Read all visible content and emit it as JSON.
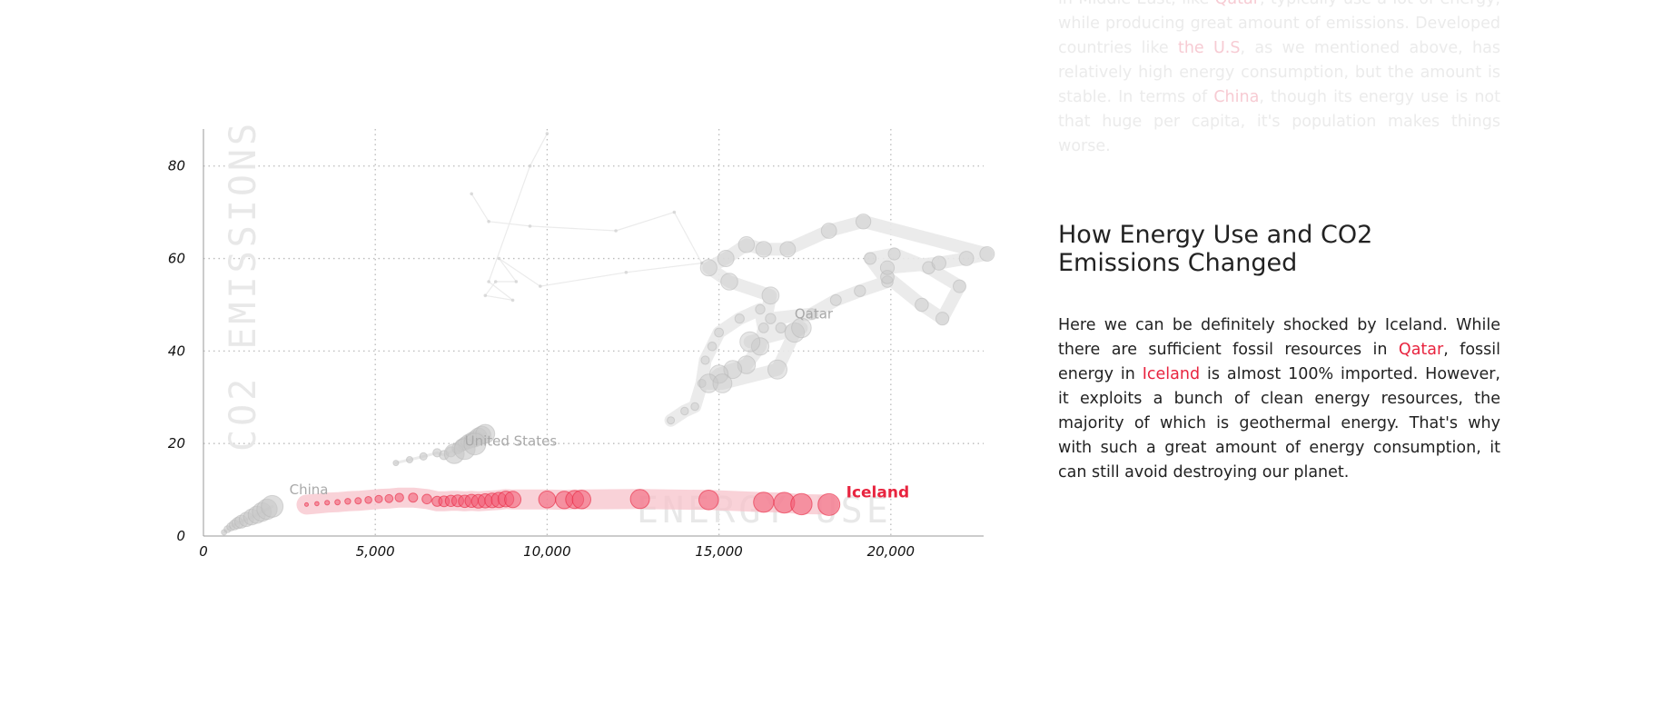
{
  "chart_data": {
    "type": "scatter",
    "xlabel": "ENERGY USE",
    "ylabel": "CO2 EMISSIONS",
    "xlim": [
      0,
      22700
    ],
    "ylim": [
      0,
      88
    ],
    "x_ticks": [
      0,
      5000,
      10000,
      15000,
      20000
    ],
    "x_tick_labels": [
      "0",
      "5,000",
      "10,000",
      "15,000",
      "20,000"
    ],
    "y_ticks": [
      0,
      20,
      40,
      60,
      80
    ],
    "y_tick_labels": [
      "0",
      "20",
      "40",
      "60",
      "80"
    ],
    "grid": "dotted",
    "series": [
      {
        "name": "China",
        "highlight": false,
        "label_pos": [
          2500,
          9
        ],
        "points": [
          [
            600,
            0.8
          ],
          [
            700,
            1.5
          ],
          [
            800,
            2.0
          ],
          [
            900,
            2.4
          ],
          [
            1000,
            2.8
          ],
          [
            1100,
            3.1
          ],
          [
            1250,
            3.6
          ],
          [
            1400,
            4.1
          ],
          [
            1550,
            4.6
          ],
          [
            1700,
            5.2
          ],
          [
            1850,
            5.8
          ],
          [
            2000,
            6.4
          ]
        ]
      },
      {
        "name": "United States",
        "highlight": false,
        "label_pos": [
          7600,
          19.5
        ],
        "points": [
          [
            5600,
            15.8
          ],
          [
            6000,
            16.5
          ],
          [
            6400,
            17.2
          ],
          [
            6800,
            18.0
          ],
          [
            7000,
            17.5
          ],
          [
            7200,
            18.2
          ],
          [
            7400,
            19.0
          ],
          [
            7500,
            19.6
          ],
          [
            7600,
            20.0
          ],
          [
            7700,
            20.4
          ],
          [
            7800,
            20.7
          ],
          [
            7900,
            21.0
          ],
          [
            8000,
            21.5
          ],
          [
            8100,
            21.8
          ],
          [
            8200,
            22.1
          ],
          [
            7300,
            17.8
          ],
          [
            7600,
            18.8
          ],
          [
            7900,
            19.9
          ]
        ]
      },
      {
        "name": "",
        "highlight": false,
        "label_pos": null,
        "points": [
          [
            7800,
            74
          ],
          [
            8300,
            68
          ],
          [
            9500,
            67
          ],
          [
            12000,
            66
          ],
          [
            13700,
            70
          ],
          [
            14500,
            59
          ],
          [
            12300,
            57
          ],
          [
            9800,
            54
          ],
          [
            8600,
            60
          ],
          [
            9100,
            55
          ],
          [
            8500,
            55
          ],
          [
            8200,
            52
          ],
          [
            9000,
            51
          ],
          [
            8300,
            55
          ],
          [
            9500,
            80
          ],
          [
            10000,
            87
          ]
        ]
      },
      {
        "name": "Qatar",
        "highlight": false,
        "label_pos": [
          17200,
          47
        ],
        "points": [
          [
            13600,
            25
          ],
          [
            14000,
            27
          ],
          [
            14300,
            28
          ],
          [
            14500,
            33
          ],
          [
            14600,
            38
          ],
          [
            14800,
            41
          ],
          [
            15000,
            44
          ],
          [
            15600,
            47
          ],
          [
            16200,
            49
          ],
          [
            16300,
            45
          ],
          [
            16800,
            45
          ],
          [
            16500,
            47
          ],
          [
            17700,
            48
          ],
          [
            18400,
            51
          ],
          [
            19100,
            53
          ],
          [
            19900,
            55
          ],
          [
            19400,
            60
          ],
          [
            20100,
            61
          ],
          [
            21100,
            58
          ],
          [
            22000,
            54
          ],
          [
            21500,
            47
          ],
          [
            20900,
            50
          ],
          [
            19900,
            56
          ],
          [
            19900,
            58
          ],
          [
            21400,
            59
          ],
          [
            22200,
            60
          ],
          [
            22800,
            61
          ],
          [
            19200,
            68
          ],
          [
            18200,
            66
          ],
          [
            17000,
            62
          ],
          [
            16300,
            62
          ],
          [
            15800,
            63
          ],
          [
            15200,
            60
          ],
          [
            14700,
            58
          ],
          [
            15300,
            55
          ],
          [
            16500,
            52
          ],
          [
            16200,
            41
          ],
          [
            15800,
            37
          ],
          [
            15400,
            36
          ],
          [
            15000,
            35
          ],
          [
            14700,
            33
          ],
          [
            15100,
            33
          ],
          [
            16700,
            36
          ],
          [
            17200,
            44
          ],
          [
            17400,
            45
          ],
          [
            15900,
            42
          ]
        ]
      },
      {
        "name": "Iceland",
        "highlight": true,
        "label_pos": [
          18700,
          8.3
        ],
        "points": [
          [
            3000,
            6.8
          ],
          [
            3300,
            7.0
          ],
          [
            3600,
            7.2
          ],
          [
            3900,
            7.3
          ],
          [
            4200,
            7.5
          ],
          [
            4500,
            7.6
          ],
          [
            4800,
            7.8
          ],
          [
            5100,
            8.0
          ],
          [
            5400,
            8.1
          ],
          [
            5700,
            8.3
          ],
          [
            6100,
            8.3
          ],
          [
            6500,
            8.0
          ],
          [
            6800,
            7.5
          ],
          [
            7000,
            7.5
          ],
          [
            7200,
            7.6
          ],
          [
            7400,
            7.6
          ],
          [
            7600,
            7.5
          ],
          [
            7800,
            7.6
          ],
          [
            8000,
            7.5
          ],
          [
            8200,
            7.6
          ],
          [
            8400,
            7.7
          ],
          [
            8600,
            7.8
          ],
          [
            8800,
            8.0
          ],
          [
            9000,
            7.9
          ],
          [
            10000,
            7.9
          ],
          [
            10500,
            7.8
          ],
          [
            10800,
            7.9
          ],
          [
            11000,
            7.9
          ],
          [
            12700,
            8.0
          ],
          [
            14700,
            7.8
          ],
          [
            16300,
            7.3
          ],
          [
            16900,
            7.2
          ],
          [
            17400,
            6.9
          ],
          [
            18200,
            6.8
          ]
        ]
      }
    ]
  },
  "colors": {
    "accent": "#e8243f",
    "other_series": "#a9a9a9",
    "highlight_fill": "#f25a72",
    "highlight_band": "#f7c3cb",
    "grid": "#bbbbbb"
  },
  "article": {
    "faded_intro": {
      "line1_a": "in Middle East, like ",
      "line1_hl": "Qatar",
      "line1_b": ", typically use a lot of energy, while producing great amount of emissions. Developed countries like ",
      "line2_hl": "the U.S",
      "line2_b": ", as we mentioned above, has relatively high energy consumption, but the amount is stable. In terms of ",
      "line3_hl": "China",
      "line3_b": ", though its energy use is not that huge per capita, it's population makes things worse."
    },
    "heading": "How Energy Use and CO2 Emissions Changed",
    "body": {
      "p1": "Here we can be definitely shocked by Iceland. While there are sufficient fossil resources in ",
      "hl1": "Qatar",
      "p2": ", fossil energy in ",
      "hl2": "Iceland",
      "p3": " is almost 100% imported. However, it exploits a bunch of clean energy resources, the majority of which is geothermal energy. That's why with such a great amount of energy consumption, it can still avoid destroying our planet."
    }
  }
}
